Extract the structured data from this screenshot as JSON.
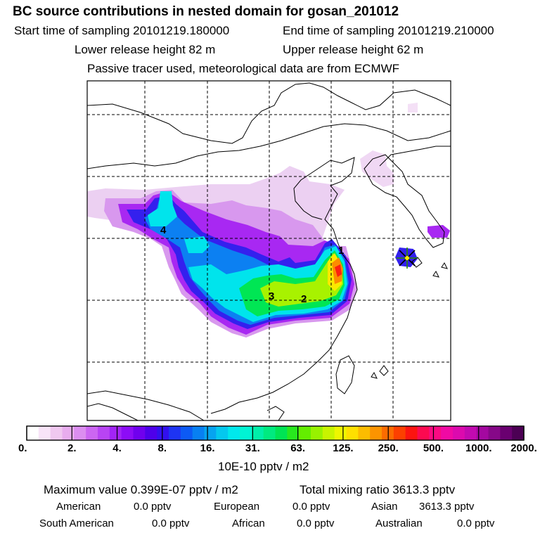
{
  "header": {
    "title": "BC  source contributions in nested domain for gosan_201012",
    "start_label": "Start time of sampling 20101219.180000",
    "end_label": "End time of sampling 20101219.210000",
    "lower_label": "Lower release height   82 m",
    "upper_label": "Upper release height   62 m",
    "note": "Passive tracer used, meteorological data are from ECMWF"
  },
  "map": {
    "source_labels": [
      "1",
      "2",
      "3",
      "4"
    ],
    "receptor": "gosan-receptor-marker"
  },
  "colorbar": {
    "ticks": [
      "0.",
      "2.",
      "4.",
      "8.",
      "16.",
      "31.",
      "63.",
      "125.",
      "250.",
      "500.",
      "1000.",
      "2000."
    ],
    "colors": [
      "#ffffff",
      "#f8e4f8",
      "#f0c8f0",
      "#e8acee",
      "#dc8ef0",
      "#cc66f2",
      "#b844f4",
      "#a224f6",
      "#8c0cf6",
      "#7000ee",
      "#4e00ea",
      "#3210ee",
      "#1e34f2",
      "#0c5af4",
      "#0880f2",
      "#06a4f0",
      "#04c8ee",
      "#00e8ec",
      "#00f4d4",
      "#00eeaa",
      "#00ea80",
      "#00e454",
      "#28e81e",
      "#64ee00",
      "#98f200",
      "#c8f400",
      "#eef600",
      "#fee000",
      "#fcbc00",
      "#fc9400",
      "#fc6c00",
      "#fc4000",
      "#fc1410",
      "#fc0a50",
      "#fa0a82",
      "#f00aa4",
      "#dc0aae",
      "#c20ab0",
      "#a408a0",
      "#860888",
      "#6a0070",
      "#4c0054"
    ],
    "unit": "10E-10 pptv / m2"
  },
  "stats": {
    "max_label": "Maximum value  0.399E-07 pptv / m2",
    "total_label": "Total mixing ratio     3613.3 pptv",
    "regions": [
      {
        "name": "American",
        "value": "0.0 pptv"
      },
      {
        "name": "European",
        "value": "0.0 pptv"
      },
      {
        "name": "Asian",
        "value": "3613.3 pptv"
      },
      {
        "name": "South American",
        "value": "0.0 pptv"
      },
      {
        "name": "African",
        "value": "0.0 pptv"
      },
      {
        "name": "Australian",
        "value": "0.0 pptv"
      }
    ]
  }
}
